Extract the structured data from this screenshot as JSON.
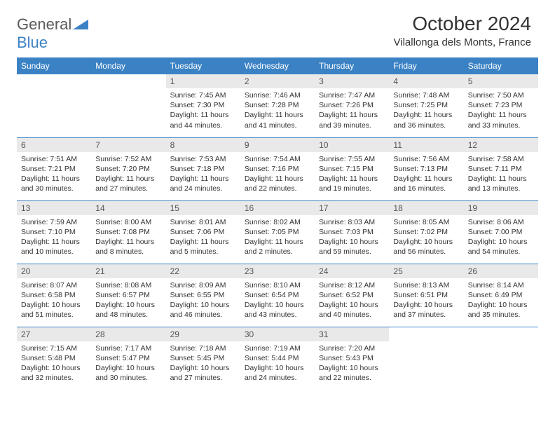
{
  "logo": {
    "text_general": "General",
    "text_blue": "Blue"
  },
  "header": {
    "month_title": "October 2024",
    "location": "Vilallonga dels Monts, France"
  },
  "colors": {
    "header_bg": "#3b82c4",
    "daynum_bg": "#e9e9e9",
    "row_divider": "#3b82c4"
  },
  "weekdays": [
    "Sunday",
    "Monday",
    "Tuesday",
    "Wednesday",
    "Thursday",
    "Friday",
    "Saturday"
  ],
  "first_weekday_index": 2,
  "days": [
    {
      "n": "1",
      "sunrise": "Sunrise: 7:45 AM",
      "sunset": "Sunset: 7:30 PM",
      "daylight": "Daylight: 11 hours and 44 minutes."
    },
    {
      "n": "2",
      "sunrise": "Sunrise: 7:46 AM",
      "sunset": "Sunset: 7:28 PM",
      "daylight": "Daylight: 11 hours and 41 minutes."
    },
    {
      "n": "3",
      "sunrise": "Sunrise: 7:47 AM",
      "sunset": "Sunset: 7:26 PM",
      "daylight": "Daylight: 11 hours and 39 minutes."
    },
    {
      "n": "4",
      "sunrise": "Sunrise: 7:48 AM",
      "sunset": "Sunset: 7:25 PM",
      "daylight": "Daylight: 11 hours and 36 minutes."
    },
    {
      "n": "5",
      "sunrise": "Sunrise: 7:50 AM",
      "sunset": "Sunset: 7:23 PM",
      "daylight": "Daylight: 11 hours and 33 minutes."
    },
    {
      "n": "6",
      "sunrise": "Sunrise: 7:51 AM",
      "sunset": "Sunset: 7:21 PM",
      "daylight": "Daylight: 11 hours and 30 minutes."
    },
    {
      "n": "7",
      "sunrise": "Sunrise: 7:52 AM",
      "sunset": "Sunset: 7:20 PM",
      "daylight": "Daylight: 11 hours and 27 minutes."
    },
    {
      "n": "8",
      "sunrise": "Sunrise: 7:53 AM",
      "sunset": "Sunset: 7:18 PM",
      "daylight": "Daylight: 11 hours and 24 minutes."
    },
    {
      "n": "9",
      "sunrise": "Sunrise: 7:54 AM",
      "sunset": "Sunset: 7:16 PM",
      "daylight": "Daylight: 11 hours and 22 minutes."
    },
    {
      "n": "10",
      "sunrise": "Sunrise: 7:55 AM",
      "sunset": "Sunset: 7:15 PM",
      "daylight": "Daylight: 11 hours and 19 minutes."
    },
    {
      "n": "11",
      "sunrise": "Sunrise: 7:56 AM",
      "sunset": "Sunset: 7:13 PM",
      "daylight": "Daylight: 11 hours and 16 minutes."
    },
    {
      "n": "12",
      "sunrise": "Sunrise: 7:58 AM",
      "sunset": "Sunset: 7:11 PM",
      "daylight": "Daylight: 11 hours and 13 minutes."
    },
    {
      "n": "13",
      "sunrise": "Sunrise: 7:59 AM",
      "sunset": "Sunset: 7:10 PM",
      "daylight": "Daylight: 11 hours and 10 minutes."
    },
    {
      "n": "14",
      "sunrise": "Sunrise: 8:00 AM",
      "sunset": "Sunset: 7:08 PM",
      "daylight": "Daylight: 11 hours and 8 minutes."
    },
    {
      "n": "15",
      "sunrise": "Sunrise: 8:01 AM",
      "sunset": "Sunset: 7:06 PM",
      "daylight": "Daylight: 11 hours and 5 minutes."
    },
    {
      "n": "16",
      "sunrise": "Sunrise: 8:02 AM",
      "sunset": "Sunset: 7:05 PM",
      "daylight": "Daylight: 11 hours and 2 minutes."
    },
    {
      "n": "17",
      "sunrise": "Sunrise: 8:03 AM",
      "sunset": "Sunset: 7:03 PM",
      "daylight": "Daylight: 10 hours and 59 minutes."
    },
    {
      "n": "18",
      "sunrise": "Sunrise: 8:05 AM",
      "sunset": "Sunset: 7:02 PM",
      "daylight": "Daylight: 10 hours and 56 minutes."
    },
    {
      "n": "19",
      "sunrise": "Sunrise: 8:06 AM",
      "sunset": "Sunset: 7:00 PM",
      "daylight": "Daylight: 10 hours and 54 minutes."
    },
    {
      "n": "20",
      "sunrise": "Sunrise: 8:07 AM",
      "sunset": "Sunset: 6:58 PM",
      "daylight": "Daylight: 10 hours and 51 minutes."
    },
    {
      "n": "21",
      "sunrise": "Sunrise: 8:08 AM",
      "sunset": "Sunset: 6:57 PM",
      "daylight": "Daylight: 10 hours and 48 minutes."
    },
    {
      "n": "22",
      "sunrise": "Sunrise: 8:09 AM",
      "sunset": "Sunset: 6:55 PM",
      "daylight": "Daylight: 10 hours and 46 minutes."
    },
    {
      "n": "23",
      "sunrise": "Sunrise: 8:10 AM",
      "sunset": "Sunset: 6:54 PM",
      "daylight": "Daylight: 10 hours and 43 minutes."
    },
    {
      "n": "24",
      "sunrise": "Sunrise: 8:12 AM",
      "sunset": "Sunset: 6:52 PM",
      "daylight": "Daylight: 10 hours and 40 minutes."
    },
    {
      "n": "25",
      "sunrise": "Sunrise: 8:13 AM",
      "sunset": "Sunset: 6:51 PM",
      "daylight": "Daylight: 10 hours and 37 minutes."
    },
    {
      "n": "26",
      "sunrise": "Sunrise: 8:14 AM",
      "sunset": "Sunset: 6:49 PM",
      "daylight": "Daylight: 10 hours and 35 minutes."
    },
    {
      "n": "27",
      "sunrise": "Sunrise: 7:15 AM",
      "sunset": "Sunset: 5:48 PM",
      "daylight": "Daylight: 10 hours and 32 minutes."
    },
    {
      "n": "28",
      "sunrise": "Sunrise: 7:17 AM",
      "sunset": "Sunset: 5:47 PM",
      "daylight": "Daylight: 10 hours and 30 minutes."
    },
    {
      "n": "29",
      "sunrise": "Sunrise: 7:18 AM",
      "sunset": "Sunset: 5:45 PM",
      "daylight": "Daylight: 10 hours and 27 minutes."
    },
    {
      "n": "30",
      "sunrise": "Sunrise: 7:19 AM",
      "sunset": "Sunset: 5:44 PM",
      "daylight": "Daylight: 10 hours and 24 minutes."
    },
    {
      "n": "31",
      "sunrise": "Sunrise: 7:20 AM",
      "sunset": "Sunset: 5:43 PM",
      "daylight": "Daylight: 10 hours and 22 minutes."
    }
  ]
}
